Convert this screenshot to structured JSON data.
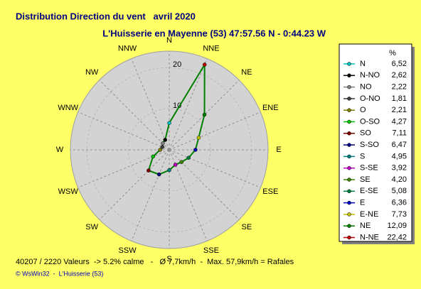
{
  "chart_data": {
    "type": "radar",
    "title": "Distribution Direction du vent   avril 2020",
    "subtitle": "L'Huisserie en Mayenne (53) 47:57.56 N - 0:44.23 W",
    "direction_labels": [
      "N",
      "NNE",
      "NE",
      "ENE",
      "E",
      "ESE",
      "SE",
      "SSE",
      "S",
      "SSW",
      "SW",
      "WSW",
      "W",
      "WNW",
      "NW",
      "NNW"
    ],
    "legend_header": "%",
    "categories": [
      "N",
      "N-NO",
      "NO",
      "O-NO",
      "O",
      "O-SO",
      "SO",
      "S-SO",
      "S",
      "S-SE",
      "SE",
      "E-SE",
      "E",
      "E-NE",
      "NE",
      "N-NE"
    ],
    "values": [
      6.52,
      2.62,
      2.22,
      1.81,
      2.21,
      4.27,
      7.11,
      6.47,
      4.95,
      3.92,
      4.2,
      5.08,
      6.36,
      7.73,
      12.09,
      22.42
    ],
    "value_labels": [
      "6,52",
      "2,62",
      "2,22",
      "1,81",
      "2,21",
      "4,27",
      "7,11",
      "6,47",
      "4,95",
      "3,92",
      "4,20",
      "5,08",
      "6,36",
      "7,73",
      "12,09",
      "22,42"
    ],
    "colors": [
      "#00c0c0",
      "#000000",
      "#808080",
      "#404040",
      "#808000",
      "#00c000",
      "#800000",
      "#000080",
      "#008080",
      "#c000c0",
      "#408000",
      "#008040",
      "#0000c0",
      "#c0c000",
      "#008000",
      "#c00000"
    ],
    "line_color": "#008000",
    "rlim": [
      0,
      24
    ],
    "rticks": [
      10,
      20
    ],
    "footer": "40207 / 2220 Valeurs  -> 5.2% calme   -   Ø 7,7km/h  -  Max. 57,9km/h = Rafales",
    "credit": "© WsWin32  -  L'Huisserie (53)"
  }
}
